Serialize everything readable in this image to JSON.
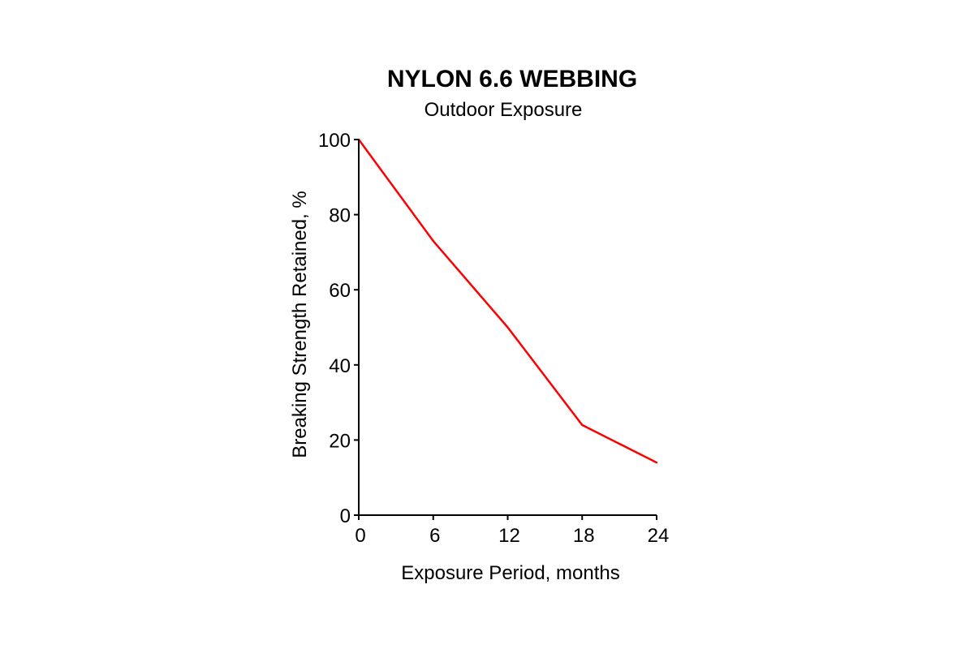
{
  "chart_data": {
    "type": "line",
    "title": "NYLON 6.6 WEBBING",
    "subtitle": "Outdoor Exposure",
    "xlabel": "Exposure Period, months",
    "ylabel": "Breaking Strength Retained, %",
    "x": [
      0,
      6,
      12,
      18,
      24
    ],
    "xticks": [
      "0",
      "6",
      "12",
      "18",
      "24"
    ],
    "yticks": [
      "0",
      "20",
      "40",
      "60",
      "80",
      "100"
    ],
    "xlim": [
      0,
      24
    ],
    "ylim": [
      0,
      100
    ],
    "grid": false,
    "series": [
      {
        "values": [
          100,
          73,
          50,
          24,
          14
        ],
        "color": "#ff0000"
      }
    ]
  }
}
